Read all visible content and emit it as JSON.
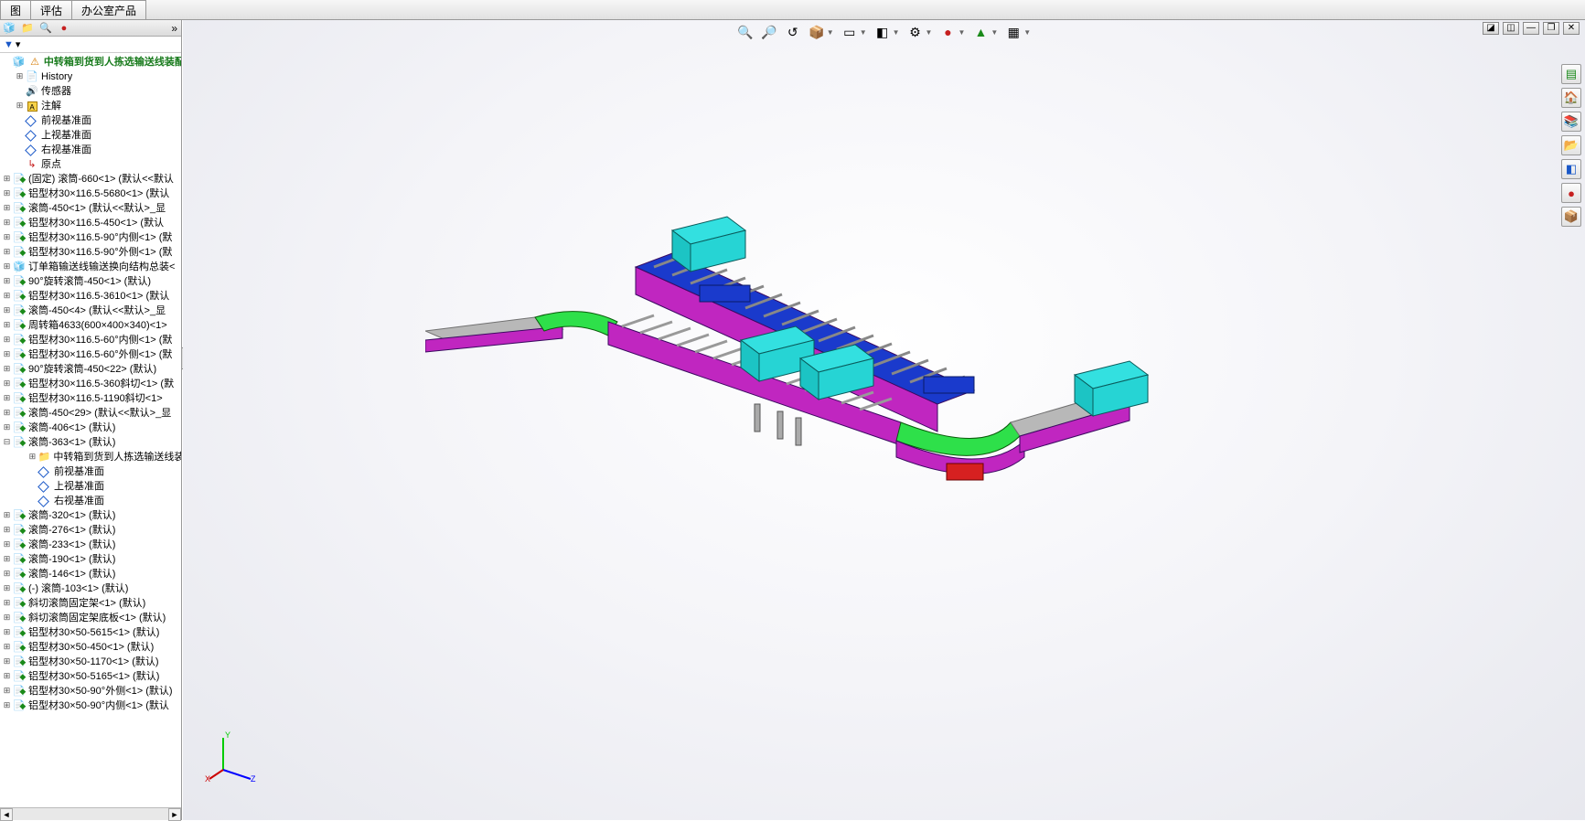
{
  "menu": {
    "tabs": [
      "图",
      "评估",
      "办公室产品"
    ]
  },
  "panelTabs": [
    {
      "name": "feature-tree-tab",
      "glyph": "🧊",
      "color": "#1a8a1a"
    },
    {
      "name": "config-tab",
      "glyph": "📁",
      "color": "#d57a00"
    },
    {
      "name": "display-tab",
      "glyph": "🔍",
      "color": "#555"
    },
    {
      "name": "appearance-tab",
      "glyph": "●",
      "color": "#c62020"
    }
  ],
  "filter": {
    "label": "▼",
    "dropdown": "▾"
  },
  "tree": {
    "root": "中转箱到货到人拣选输送线装配",
    "items": [
      {
        "exp": "+",
        "icon": "📄",
        "color": "#d57a00",
        "label": "History",
        "indent": 1
      },
      {
        "exp": "",
        "icon": "🔊",
        "color": "#1a58c8",
        "label": "传感器",
        "indent": 1
      },
      {
        "exp": "+",
        "icon": "A",
        "color": "#d57a00",
        "label": "注解",
        "indent": 1,
        "boxA": true
      },
      {
        "exp": "",
        "icon": "diamond",
        "label": "前视基准面",
        "indent": 1
      },
      {
        "exp": "",
        "icon": "diamond",
        "label": "上视基准面",
        "indent": 1
      },
      {
        "exp": "",
        "icon": "diamond",
        "label": "右视基准面",
        "indent": 1
      },
      {
        "exp": "",
        "icon": "↳",
        "color": "#c62020",
        "label": "原点",
        "indent": 1
      },
      {
        "exp": "+",
        "icon": "part",
        "label": "(固定) 滚筒-660<1> (默认<<默认",
        "indent": 0
      },
      {
        "exp": "+",
        "icon": "part",
        "label": "铝型材30×116.5-5680<1> (默认",
        "indent": 0
      },
      {
        "exp": "+",
        "icon": "part",
        "label": "滚筒-450<1> (默认<<默认>_显",
        "indent": 0
      },
      {
        "exp": "+",
        "icon": "part",
        "label": "铝型材30×116.5-450<1> (默认",
        "indent": 0
      },
      {
        "exp": "+",
        "icon": "part",
        "label": "铝型材30×116.5-90°内侧<1> (默",
        "indent": 0
      },
      {
        "exp": "+",
        "icon": "part",
        "label": "铝型材30×116.5-90°外侧<1> (默",
        "indent": 0
      },
      {
        "exp": "+",
        "icon": "asm",
        "label": "订单箱输送线输送换向结构总装<",
        "indent": 0
      },
      {
        "exp": "+",
        "icon": "part",
        "label": "90°旋转滚筒-450<1> (默认)",
        "indent": 0
      },
      {
        "exp": "+",
        "icon": "part",
        "label": "铝型材30×116.5-3610<1> (默认",
        "indent": 0
      },
      {
        "exp": "+",
        "icon": "part",
        "label": "滚筒-450<4> (默认<<默认>_显",
        "indent": 0
      },
      {
        "exp": "+",
        "icon": "part",
        "label": "周转箱4633(600×400×340)<1>",
        "indent": 0
      },
      {
        "exp": "+",
        "icon": "part",
        "label": "铝型材30×116.5-60°内侧<1> (默",
        "indent": 0
      },
      {
        "exp": "+",
        "icon": "part",
        "label": "铝型材30×116.5-60°外侧<1> (默",
        "indent": 0
      },
      {
        "exp": "+",
        "icon": "part",
        "label": "90°旋转滚筒-450<22> (默认)",
        "indent": 0
      },
      {
        "exp": "+",
        "icon": "part",
        "label": "铝型材30×116.5-360斜切<1> (默",
        "indent": 0
      },
      {
        "exp": "+",
        "icon": "part",
        "label": "铝型材30×116.5-1190斜切<1>",
        "indent": 0
      },
      {
        "exp": "+",
        "icon": "part",
        "label": "滚筒-450<29> (默认<<默认>_显",
        "indent": 0
      },
      {
        "exp": "+",
        "icon": "part",
        "label": "滚筒-406<1> (默认)",
        "indent": 0
      },
      {
        "exp": "-",
        "icon": "part",
        "label": "滚筒-363<1> (默认)",
        "indent": 0
      },
      {
        "exp": "+",
        "icon": "📁",
        "color": "#d57a00",
        "label": "中转箱到货到人拣选输送线装",
        "indent": 2
      },
      {
        "exp": "",
        "icon": "diamond",
        "label": "前视基准面",
        "indent": 2
      },
      {
        "exp": "",
        "icon": "diamond",
        "label": "上视基准面",
        "indent": 2
      },
      {
        "exp": "",
        "icon": "diamond",
        "label": "右视基准面",
        "indent": 2
      },
      {
        "exp": "+",
        "icon": "part",
        "label": "滚筒-320<1> (默认)",
        "indent": 0
      },
      {
        "exp": "+",
        "icon": "part",
        "label": "滚筒-276<1> (默认)",
        "indent": 0
      },
      {
        "exp": "+",
        "icon": "part",
        "label": "滚筒-233<1> (默认)",
        "indent": 0
      },
      {
        "exp": "+",
        "icon": "part",
        "label": "滚筒-190<1> (默认)",
        "indent": 0
      },
      {
        "exp": "+",
        "icon": "part",
        "label": "滚筒-146<1> (默认)",
        "indent": 0
      },
      {
        "exp": "+",
        "icon": "part",
        "label": "(-) 滚筒-103<1> (默认)",
        "indent": 0
      },
      {
        "exp": "+",
        "icon": "part",
        "label": "斜切滚筒固定架<1> (默认)",
        "indent": 0
      },
      {
        "exp": "+",
        "icon": "part",
        "label": "斜切滚筒固定架底板<1> (默认)",
        "indent": 0
      },
      {
        "exp": "+",
        "icon": "part",
        "label": "铝型材30×50-5615<1> (默认)",
        "indent": 0
      },
      {
        "exp": "+",
        "icon": "part",
        "label": "铝型材30×50-450<1> (默认)",
        "indent": 0
      },
      {
        "exp": "+",
        "icon": "part",
        "label": "铝型材30×50-1170<1> (默认)",
        "indent": 0
      },
      {
        "exp": "+",
        "icon": "part",
        "label": "铝型材30×50-5165<1> (默认)",
        "indent": 0
      },
      {
        "exp": "+",
        "icon": "part",
        "label": "铝型材30×50-90°外侧<1> (默认)",
        "indent": 0
      },
      {
        "exp": "+",
        "icon": "part",
        "label": "铝型材30×50-90°内侧<1> (默认",
        "indent": 0
      }
    ]
  },
  "viewToolbar": [
    {
      "name": "zoom-fit-icon",
      "glyph": "🔍"
    },
    {
      "name": "zoom-area-icon",
      "glyph": "🔎"
    },
    {
      "name": "prev-view-icon",
      "glyph": "↺"
    },
    {
      "name": "section-icon",
      "glyph": "📦",
      "dd": true
    },
    {
      "name": "view-orient-icon",
      "glyph": "▭",
      "dd": true
    },
    {
      "name": "display-style-icon",
      "glyph": "◧",
      "dd": true
    },
    {
      "name": "hide-show-icon",
      "glyph": "⚙",
      "dd": true
    },
    {
      "name": "appearance-icon",
      "glyph": "●",
      "dd": true,
      "colorClass": "c-red"
    },
    {
      "name": "scene-icon",
      "glyph": "▲",
      "dd": true,
      "colorClass": "c-green"
    },
    {
      "name": "render-icon",
      "glyph": "▦",
      "dd": true
    }
  ],
  "winControls": [
    {
      "name": "win-view1",
      "glyph": "◪"
    },
    {
      "name": "win-view2",
      "glyph": "◫"
    },
    {
      "name": "win-min",
      "glyph": "—"
    },
    {
      "name": "win-max",
      "glyph": "❐"
    },
    {
      "name": "win-close",
      "glyph": "✕"
    }
  ],
  "taskPane": [
    {
      "name": "task-resources",
      "glyph": "▤",
      "color": "#1a8a1a"
    },
    {
      "name": "task-home",
      "glyph": "🏠",
      "color": "#d57a00"
    },
    {
      "name": "task-library",
      "glyph": "📚",
      "color": "#c04a8a"
    },
    {
      "name": "task-file",
      "glyph": "📂",
      "color": "#d57a00"
    },
    {
      "name": "task-view",
      "glyph": "◧",
      "color": "#1a58c8"
    },
    {
      "name": "task-appearance",
      "glyph": "●",
      "color": "#c62020"
    },
    {
      "name": "task-custom",
      "glyph": "📦",
      "color": "#d57a00"
    }
  ],
  "triad": {
    "x": "X",
    "y": "Y",
    "z": "Z"
  },
  "model": {
    "colors": {
      "rail": "#c026c0",
      "railDark": "#3a0a60",
      "roller": "#b8b8b8",
      "curve": "#2ee04a",
      "box": "#33e0e0",
      "boxEdge": "#0a5a5a",
      "panel": "#1a3acc",
      "motor": "#d62020",
      "frame": "#707070"
    }
  }
}
